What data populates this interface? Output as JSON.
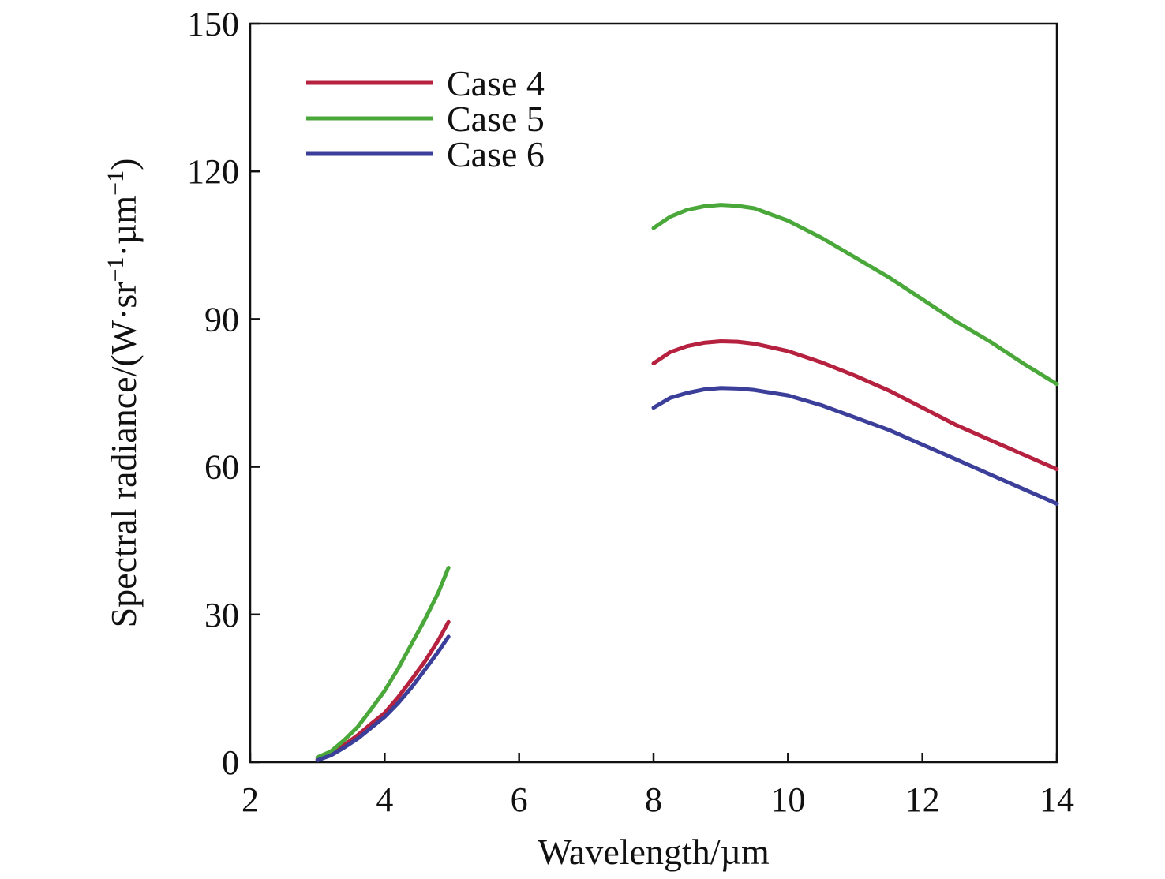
{
  "chart_data": {
    "type": "line",
    "xlabel": "Wavelength/µm",
    "ylabel": {
      "prefix": "Spectral radiance/(W·sr",
      "sup1": "−1",
      "middle": "·µm",
      "sup2": "−1",
      "suffix": ")"
    },
    "xlim": [
      2,
      14
    ],
    "ylim": [
      0,
      150
    ],
    "xticks": [
      "2",
      "4",
      "6",
      "8",
      "10",
      "12",
      "14"
    ],
    "yticks": [
      "0",
      "30",
      "60",
      "90",
      "120",
      "150"
    ],
    "grid": false,
    "legend_position": "top-left",
    "series": [
      {
        "name": "Case 4",
        "color": "#b5213f",
        "segments": [
          [
            [
              3.0,
              0.6
            ],
            [
              3.2,
              1.8
            ],
            [
              3.4,
              3.5
            ],
            [
              3.6,
              5.5
            ],
            [
              3.8,
              7.8
            ],
            [
              4.0,
              10.0
            ],
            [
              4.2,
              13.2
            ],
            [
              4.4,
              16.8
            ],
            [
              4.6,
              20.5
            ],
            [
              4.8,
              24.8
            ],
            [
              4.95,
              28.5
            ]
          ],
          [
            [
              8.0,
              81.0
            ],
            [
              8.25,
              83.3
            ],
            [
              8.5,
              84.5
            ],
            [
              8.75,
              85.2
            ],
            [
              9.0,
              85.5
            ],
            [
              9.25,
              85.4
            ],
            [
              9.5,
              85.0
            ],
            [
              10.0,
              83.5
            ],
            [
              10.5,
              81.2
            ],
            [
              11.0,
              78.5
            ],
            [
              11.5,
              75.5
            ],
            [
              12.0,
              72.0
            ],
            [
              12.5,
              68.5
            ],
            [
              13.0,
              65.5
            ],
            [
              13.5,
              62.5
            ],
            [
              14.0,
              59.5
            ]
          ]
        ]
      },
      {
        "name": "Case 5",
        "color": "#4aa83a",
        "segments": [
          [
            [
              3.0,
              1.0
            ],
            [
              3.2,
              2.2
            ],
            [
              3.4,
              4.5
            ],
            [
              3.6,
              7.2
            ],
            [
              3.8,
              10.8
            ],
            [
              4.0,
              14.5
            ],
            [
              4.2,
              19.0
            ],
            [
              4.4,
              24.0
            ],
            [
              4.6,
              29.0
            ],
            [
              4.8,
              34.5
            ],
            [
              4.95,
              39.5
            ]
          ],
          [
            [
              8.0,
              108.5
            ],
            [
              8.25,
              110.8
            ],
            [
              8.5,
              112.2
            ],
            [
              8.75,
              112.9
            ],
            [
              9.0,
              113.2
            ],
            [
              9.25,
              113.0
            ],
            [
              9.5,
              112.5
            ],
            [
              10.0,
              110.0
            ],
            [
              10.5,
              106.5
            ],
            [
              11.0,
              102.5
            ],
            [
              11.5,
              98.5
            ],
            [
              12.0,
              94.0
            ],
            [
              12.5,
              89.5
            ],
            [
              13.0,
              85.5
            ],
            [
              13.5,
              81.0
            ],
            [
              14.0,
              76.8
            ]
          ]
        ]
      },
      {
        "name": "Case 6",
        "color": "#3b3f9a",
        "segments": [
          [
            [
              3.0,
              0.4
            ],
            [
              3.2,
              1.4
            ],
            [
              3.4,
              3.0
            ],
            [
              3.6,
              4.8
            ],
            [
              3.8,
              7.0
            ],
            [
              4.0,
              9.2
            ],
            [
              4.2,
              12.0
            ],
            [
              4.4,
              15.2
            ],
            [
              4.6,
              18.8
            ],
            [
              4.8,
              22.5
            ],
            [
              4.95,
              25.5
            ]
          ],
          [
            [
              8.0,
              72.0
            ],
            [
              8.25,
              74.0
            ],
            [
              8.5,
              75.0
            ],
            [
              8.75,
              75.7
            ],
            [
              9.0,
              76.0
            ],
            [
              9.25,
              75.9
            ],
            [
              9.5,
              75.6
            ],
            [
              10.0,
              74.5
            ],
            [
              10.5,
              72.5
            ],
            [
              11.0,
              70.0
            ],
            [
              11.5,
              67.5
            ],
            [
              12.0,
              64.5
            ],
            [
              12.5,
              61.5
            ],
            [
              13.0,
              58.5
            ],
            [
              13.5,
              55.5
            ],
            [
              14.0,
              52.5
            ]
          ]
        ]
      }
    ]
  }
}
